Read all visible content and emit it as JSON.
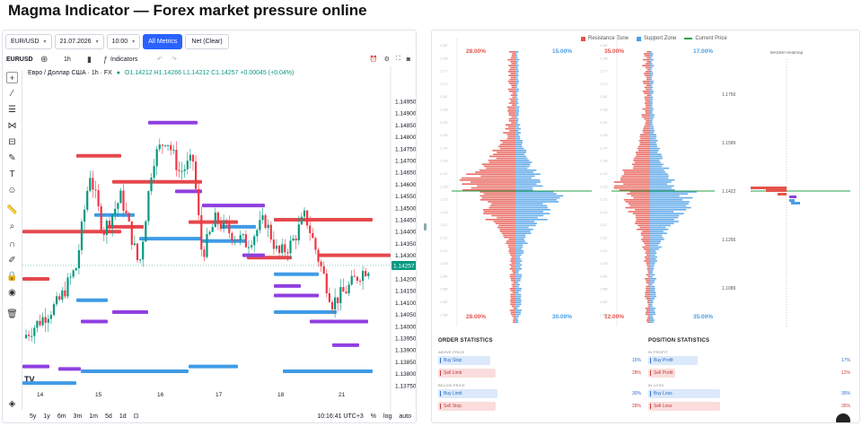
{
  "page": {
    "title": "Magma Indicator — Forex market pressure online"
  },
  "tradingview": {
    "symbol_select": "EUR/USD",
    "date_select": "21.07.2026",
    "time_select": "10:00",
    "all_metrics_btn": "All Metrics",
    "net_clear_btn": "Net (Clear)",
    "symbol_short": "EURUSD",
    "interval": "1h",
    "indicators_label": "Indicators",
    "legend_title": "Евро / Доллар США · 1h · FX",
    "ohlc": {
      "o": "O1.14212",
      "h": "H1.14266",
      "l": "L1.14212",
      "c": "C1.14257",
      "chg": "+0.00045 (+0.04%)"
    },
    "last_price": "1.14257",
    "price_ticks": [
      "1.14950",
      "1.14900",
      "1.14850",
      "1.14800",
      "1.14750",
      "1.14700",
      "1.14650",
      "1.14600",
      "1.14550",
      "1.14500",
      "1.14450",
      "1.14400",
      "1.14350",
      "1.14300",
      "1.14250",
      "1.14200",
      "1.14150",
      "1.14100",
      "1.14050",
      "1.14000",
      "1.13950",
      "1.13900",
      "1.13850",
      "1.13800",
      "1.13750"
    ],
    "x_ticks": [
      "14",
      "15",
      "16",
      "17",
      "18",
      "21"
    ],
    "timeframes": [
      "5y",
      "1y",
      "6m",
      "3m",
      "1m",
      "5d",
      "1d"
    ],
    "clock": "10:16:41 UTC+3",
    "percent_btn": "%",
    "log_btn": "log",
    "auto_btn": "auto",
    "colors": {
      "up": "#089981",
      "down": "#f23645",
      "red_level": "#e5484d",
      "blue_level": "#3f9be6",
      "purple_level": "#8f3fe0"
    }
  },
  "magma": {
    "legend": {
      "resistance": "Resistance Zone",
      "support": "Support Zone",
      "current": "Current Price"
    },
    "orders_panel": {
      "tl": "28.00%",
      "tr": "15.00%",
      "bl": "28.00%",
      "br": "30.00%"
    },
    "positions_panel": {
      "tl": "35.00%",
      "tr": "17.00%",
      "bl": "12.00%",
      "br": "35.00%"
    },
    "heatmap": {
      "title": "MAGMA Heatmap",
      "ticks": [
        "1.1756",
        "1.1589",
        "1.1422",
        "1.1256",
        "1.1089"
      ]
    },
    "colors": {
      "resistance": "#e5534b",
      "support": "#4a9de6",
      "current": "#27a045"
    },
    "order_statistics": {
      "title": "ORDER STATISTICS",
      "above_label": "ABOVE PRICE",
      "below_label": "BELOW PRICE",
      "rows": [
        {
          "label": "Buy Stop",
          "value": "15%"
        },
        {
          "label": "Sell Limit",
          "value": "28%"
        },
        {
          "label": "Buy Limit",
          "value": "30%"
        },
        {
          "label": "Sell Stop",
          "value": "28%"
        }
      ]
    },
    "position_statistics": {
      "title": "POSITION STATISTICS",
      "profit_label": "IN PROFIT",
      "loss_label": "IN LOSS",
      "rows": [
        {
          "label": "Buy Profit",
          "value": "17%"
        },
        {
          "label": "Sell Profit",
          "value": "12%"
        },
        {
          "label": "Buy Loss",
          "value": "35%"
        },
        {
          "label": "Sell Loss",
          "value": "35%"
        }
      ]
    }
  }
}
